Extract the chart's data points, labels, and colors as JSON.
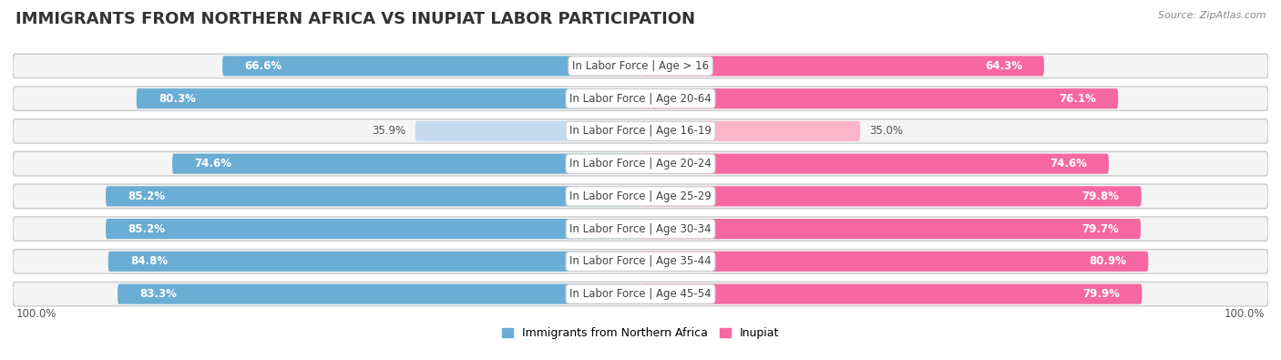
{
  "title": "IMMIGRANTS FROM NORTHERN AFRICA VS INUPIAT LABOR PARTICIPATION",
  "source": "Source: ZipAtlas.com",
  "categories": [
    "In Labor Force | Age > 16",
    "In Labor Force | Age 20-64",
    "In Labor Force | Age 16-19",
    "In Labor Force | Age 20-24",
    "In Labor Force | Age 25-29",
    "In Labor Force | Age 30-34",
    "In Labor Force | Age 35-44",
    "In Labor Force | Age 45-54"
  ],
  "left_values": [
    66.6,
    80.3,
    35.9,
    74.6,
    85.2,
    85.2,
    84.8,
    83.3
  ],
  "right_values": [
    64.3,
    76.1,
    35.0,
    74.6,
    79.8,
    79.7,
    80.9,
    79.9
  ],
  "left_color": "#6aadd5",
  "right_color": "#f768a1",
  "left_color_light": "#c6dbef",
  "right_color_light": "#fbb4c9",
  "row_bg_color": "#e8e8e8",
  "row_inner_bg": "#f5f5f5",
  "legend_left": "Immigrants from Northern Africa",
  "legend_right": "Inupiat",
  "max_value": 100.0,
  "title_fontsize": 13,
  "label_fontsize": 8.5,
  "value_fontsize": 8.5,
  "bar_height": 0.62,
  "center_label_color": "#444444",
  "footer_label": "100.0%"
}
